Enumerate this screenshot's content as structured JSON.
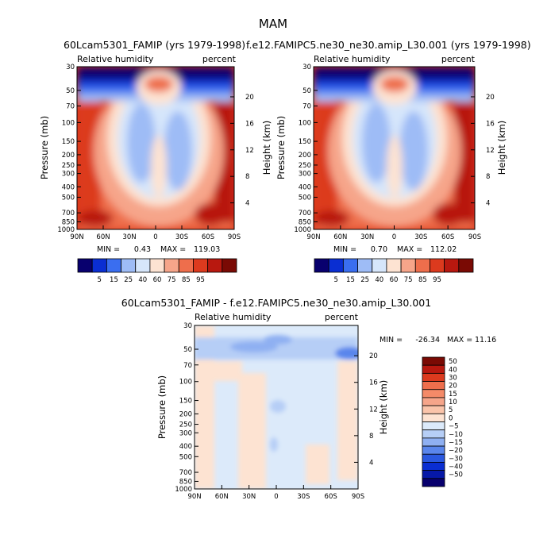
{
  "figure": {
    "title": "MAM"
  },
  "chart_data": [
    {
      "type": "heatmap",
      "title": "60Lcam5301_FAMIP (yrs 1979-1998)",
      "left_label": "Relative humidity",
      "right_label": "percent",
      "xlabel": "",
      "ylabel": "Pressure (mb)",
      "y2label": "Height (km)",
      "x_ticks": [
        "90N",
        "60N",
        "30N",
        "0",
        "30S",
        "60S",
        "90S"
      ],
      "y_ticks": [
        "30",
        "50",
        "70",
        "100",
        "150",
        "200",
        "250",
        "300",
        "400",
        "500",
        "700",
        "850",
        "1000"
      ],
      "y2_ticks": [
        "20",
        "16",
        "12",
        "8",
        "4"
      ],
      "stats": {
        "min_label": "MIN =",
        "min": "0.43",
        "max_label": "MAX = ",
        "max": "119.03"
      },
      "colorbar_levels": [
        "5",
        "15",
        "25",
        "40",
        "60",
        "75",
        "85",
        "95"
      ],
      "colorbar_colors": [
        "#08006e",
        "#0a2ed2",
        "#3a6ef0",
        "#9ebcf6",
        "#d6e6fb",
        "#fde3d2",
        "#f6a58a",
        "#ee6e4c",
        "#dc3a1e",
        "#b8180f",
        "#7a0a04"
      ],
      "ylim": [
        1000,
        30
      ],
      "xlim": [
        "90N",
        "90S"
      ]
    },
    {
      "type": "heatmap",
      "title": "f.e12.FAMIPC5.ne30_ne30.amip_L30.001 (yrs 1979-1998)",
      "left_label": "Relative humidity",
      "right_label": "percent",
      "xlabel": "",
      "ylabel": "Pressure (mb)",
      "y2label": "Height (km)",
      "x_ticks": [
        "90N",
        "60N",
        "30N",
        "0",
        "30S",
        "60S",
        "90S"
      ],
      "y_ticks": [
        "30",
        "50",
        "70",
        "100",
        "150",
        "200",
        "250",
        "300",
        "400",
        "500",
        "700",
        "850",
        "1000"
      ],
      "y2_ticks": [
        "20",
        "16",
        "12",
        "8",
        "4"
      ],
      "stats": {
        "min_label": "MIN =",
        "min": "0.70",
        "max_label": "MAX = ",
        "max": "112.02"
      },
      "colorbar_levels": [
        "5",
        "15",
        "25",
        "40",
        "60",
        "75",
        "85",
        "95"
      ],
      "colorbar_colors": [
        "#08006e",
        "#0a2ed2",
        "#3a6ef0",
        "#9ebcf6",
        "#d6e6fb",
        "#fde3d2",
        "#f6a58a",
        "#ee6e4c",
        "#dc3a1e",
        "#b8180f",
        "#7a0a04"
      ],
      "ylim": [
        1000,
        30
      ],
      "xlim": [
        "90N",
        "90S"
      ]
    },
    {
      "type": "heatmap",
      "title": "60Lcam5301_FAMIP - f.e12.FAMIPC5.ne30_ne30.amip_L30.001",
      "left_label": "Relative humidity",
      "right_label": "percent",
      "xlabel": "",
      "ylabel": "Pressure (mb)",
      "y2label": "Height (km)",
      "x_ticks": [
        "90N",
        "60N",
        "30N",
        "0",
        "30S",
        "60S",
        "90S"
      ],
      "y_ticks": [
        "30",
        "50",
        "70",
        "100",
        "150",
        "200",
        "250",
        "300",
        "400",
        "500",
        "700",
        "850",
        "1000"
      ],
      "y2_ticks": [
        "20",
        "16",
        "12",
        "8",
        "4"
      ],
      "stats": {
        "min_label": "MIN =",
        "min": "-26.34",
        "max_label": "MAX =",
        "max": "11.16"
      },
      "colorbar_levels": [
        "50",
        "40",
        "30",
        "20",
        "15",
        "10",
        "5",
        "0",
        "−5",
        "−10",
        "−15",
        "−20",
        "−30",
        "−40",
        "−50"
      ],
      "colorbar_colors": [
        "#7a0a04",
        "#b8180f",
        "#dc3a1e",
        "#ee6e4c",
        "#f48a68",
        "#f6a58a",
        "#fac4aa",
        "#fde3d2",
        "#dceafa",
        "#b6cef6",
        "#8fb0f2",
        "#5a86ec",
        "#2a58e0",
        "#0a2ed2",
        "#0618a8",
        "#08006e"
      ],
      "ylim": [
        1000,
        30
      ],
      "xlim": [
        "90N",
        "90S"
      ]
    }
  ]
}
